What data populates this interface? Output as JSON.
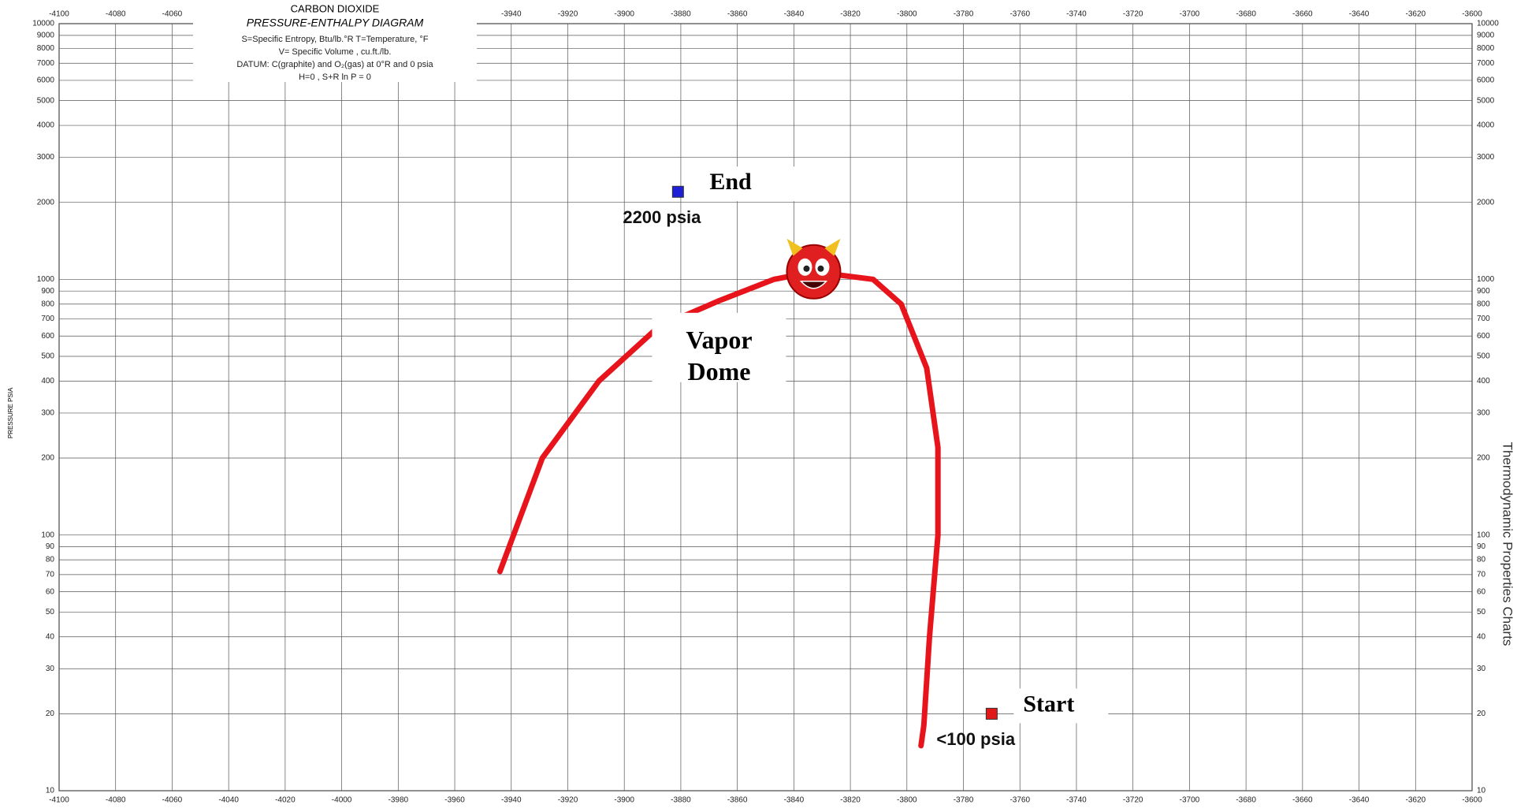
{
  "chart_data": {
    "type": "line",
    "title": "CARBON DIOXIDE",
    "subtitle": "PRESSURE-ENTHALPY DIAGRAM",
    "notes": [
      "S=Specific Entropy, Btu/lb.°R     T=Temperature, °F",
      "V= Specific Volume , cu.ft./lb.",
      "DATUM: C(graphite) and O₂(gas) at 0°R and 0 psia",
      "H=0 , S+R ln P = 0"
    ],
    "y_label": "PRESSURE   PSIA",
    "side_label": "Thermodynamic Properties Charts",
    "xlim": [
      -4100,
      -3600
    ],
    "xticks": [
      -4100,
      -4080,
      -4060,
      -4040,
      -4020,
      -4000,
      -3980,
      -3960,
      -3940,
      -3920,
      -3900,
      -3880,
      -3860,
      -3840,
      -3820,
      -3800,
      -3780,
      -3760,
      -3740,
      -3720,
      -3700,
      -3680,
      -3660,
      -3640,
      -3620,
      -3600
    ],
    "ylim": [
      10,
      10000
    ],
    "log_y": true,
    "yticks": [
      10,
      20,
      30,
      40,
      50,
      60,
      70,
      80,
      90,
      100,
      200,
      300,
      400,
      500,
      600,
      700,
      800,
      900,
      1000,
      2000,
      3000,
      4000,
      5000,
      6000,
      7000,
      8000,
      9000,
      10000
    ],
    "grid": true,
    "series": [
      {
        "name": "Vapor Dome",
        "color": "#e8141c",
        "x": [
          -3944,
          -3929,
          -3909,
          -3888,
          -3867,
          -3847,
          -3833,
          -3812,
          -3802,
          -3793,
          -3789,
          -3789,
          -3792,
          -3794,
          -3795
        ],
        "values": [
          72,
          200,
          400,
          650,
          820,
          1000,
          1070,
          1000,
          800,
          450,
          220,
          100,
          40,
          18,
          15
        ]
      }
    ],
    "points": [
      {
        "name": "End",
        "label": "2200 psia",
        "color": "#1f1fd6",
        "x": -3881,
        "y": 2200
      },
      {
        "name": "Start",
        "label": "<100 psia",
        "color": "#e01818",
        "x": -3770,
        "y": 20
      }
    ]
  }
}
